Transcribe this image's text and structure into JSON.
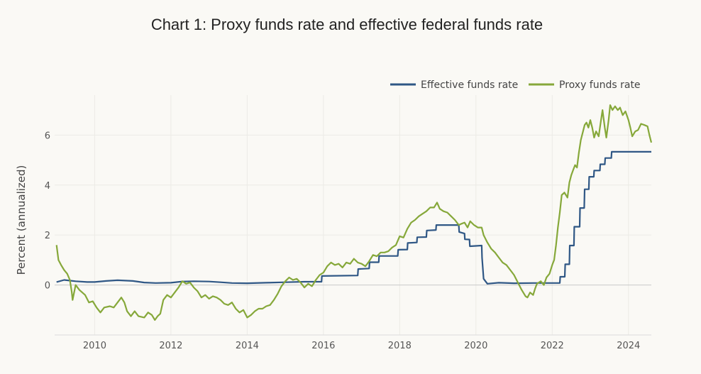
{
  "chart_data": {
    "type": "line",
    "title": "Chart 1: Proxy funds rate and effective federal funds rate",
    "xlabel": "",
    "ylabel": "Percent (annualized)",
    "xlim": [
      2008.95,
      2024.6
    ],
    "ylim": [
      -2,
      7.6
    ],
    "x_ticks": [
      2010,
      2012,
      2014,
      2016,
      2018,
      2020,
      2022,
      2024
    ],
    "y_ticks": [
      0,
      2,
      4,
      6
    ],
    "grid": true,
    "legend_position": "top-right",
    "series": [
      {
        "name": "Effective funds rate",
        "color": "#2f5785",
        "points": [
          [
            2009.0,
            0.12
          ],
          [
            2009.2,
            0.2
          ],
          [
            2009.5,
            0.15
          ],
          [
            2009.8,
            0.12
          ],
          [
            2010.0,
            0.12
          ],
          [
            2010.3,
            0.16
          ],
          [
            2010.6,
            0.19
          ],
          [
            2011.0,
            0.16
          ],
          [
            2011.3,
            0.1
          ],
          [
            2011.6,
            0.08
          ],
          [
            2012.0,
            0.09
          ],
          [
            2012.3,
            0.14
          ],
          [
            2012.6,
            0.15
          ],
          [
            2013.0,
            0.14
          ],
          [
            2013.3,
            0.11
          ],
          [
            2013.6,
            0.08
          ],
          [
            2014.0,
            0.07
          ],
          [
            2014.5,
            0.09
          ],
          [
            2015.0,
            0.11
          ],
          [
            2015.5,
            0.13
          ],
          [
            2015.95,
            0.13
          ],
          [
            2015.96,
            0.36
          ],
          [
            2016.9,
            0.38
          ],
          [
            2016.91,
            0.64
          ],
          [
            2017.2,
            0.66
          ],
          [
            2017.21,
            0.91
          ],
          [
            2017.45,
            0.91
          ],
          [
            2017.46,
            1.16
          ],
          [
            2017.95,
            1.16
          ],
          [
            2017.96,
            1.41
          ],
          [
            2018.2,
            1.42
          ],
          [
            2018.21,
            1.68
          ],
          [
            2018.45,
            1.7
          ],
          [
            2018.46,
            1.91
          ],
          [
            2018.7,
            1.92
          ],
          [
            2018.71,
            2.18
          ],
          [
            2018.95,
            2.2
          ],
          [
            2018.96,
            2.4
          ],
          [
            2019.55,
            2.4
          ],
          [
            2019.56,
            2.12
          ],
          [
            2019.7,
            2.06
          ],
          [
            2019.71,
            1.83
          ],
          [
            2019.83,
            1.82
          ],
          [
            2019.84,
            1.55
          ],
          [
            2020.15,
            1.58
          ],
          [
            2020.16,
            1.1
          ],
          [
            2020.2,
            0.25
          ],
          [
            2020.3,
            0.05
          ],
          [
            2020.6,
            0.09
          ],
          [
            2021.0,
            0.07
          ],
          [
            2021.5,
            0.08
          ],
          [
            2022.0,
            0.08
          ],
          [
            2022.2,
            0.08
          ],
          [
            2022.21,
            0.33
          ],
          [
            2022.33,
            0.33
          ],
          [
            2022.34,
            0.83
          ],
          [
            2022.45,
            0.83
          ],
          [
            2022.46,
            1.58
          ],
          [
            2022.57,
            1.58
          ],
          [
            2022.58,
            2.33
          ],
          [
            2022.72,
            2.33
          ],
          [
            2022.73,
            3.08
          ],
          [
            2022.84,
            3.08
          ],
          [
            2022.85,
            3.83
          ],
          [
            2022.96,
            3.83
          ],
          [
            2022.97,
            4.33
          ],
          [
            2023.09,
            4.33
          ],
          [
            2023.1,
            4.58
          ],
          [
            2023.25,
            4.58
          ],
          [
            2023.26,
            4.83
          ],
          [
            2023.38,
            4.83
          ],
          [
            2023.39,
            5.08
          ],
          [
            2023.55,
            5.08
          ],
          [
            2023.56,
            5.33
          ],
          [
            2024.6,
            5.33
          ]
        ]
      },
      {
        "name": "Proxy funds rate",
        "color": "#86a83a",
        "points": [
          [
            2009.0,
            1.6
          ],
          [
            2009.05,
            1.0
          ],
          [
            2009.12,
            0.8
          ],
          [
            2009.2,
            0.6
          ],
          [
            2009.28,
            0.45
          ],
          [
            2009.35,
            0.2
          ],
          [
            2009.4,
            -0.3
          ],
          [
            2009.42,
            -0.6
          ],
          [
            2009.5,
            0.0
          ],
          [
            2009.6,
            -0.2
          ],
          [
            2009.75,
            -0.4
          ],
          [
            2009.85,
            -0.7
          ],
          [
            2009.95,
            -0.65
          ],
          [
            2010.05,
            -0.9
          ],
          [
            2010.15,
            -1.1
          ],
          [
            2010.25,
            -0.9
          ],
          [
            2010.4,
            -0.85
          ],
          [
            2010.5,
            -0.9
          ],
          [
            2010.6,
            -0.7
          ],
          [
            2010.7,
            -0.5
          ],
          [
            2010.78,
            -0.7
          ],
          [
            2010.85,
            -1.05
          ],
          [
            2010.95,
            -1.25
          ],
          [
            2011.05,
            -1.05
          ],
          [
            2011.15,
            -1.25
          ],
          [
            2011.3,
            -1.3
          ],
          [
            2011.4,
            -1.1
          ],
          [
            2011.5,
            -1.2
          ],
          [
            2011.58,
            -1.4
          ],
          [
            2011.65,
            -1.25
          ],
          [
            2011.72,
            -1.15
          ],
          [
            2011.8,
            -0.6
          ],
          [
            2011.9,
            -0.4
          ],
          [
            2012.0,
            -0.5
          ],
          [
            2012.1,
            -0.3
          ],
          [
            2012.2,
            -0.1
          ],
          [
            2012.3,
            0.15
          ],
          [
            2012.4,
            0.05
          ],
          [
            2012.5,
            0.1
          ],
          [
            2012.6,
            -0.1
          ],
          [
            2012.7,
            -0.25
          ],
          [
            2012.8,
            -0.5
          ],
          [
            2012.9,
            -0.4
          ],
          [
            2013.0,
            -0.55
          ],
          [
            2013.1,
            -0.45
          ],
          [
            2013.2,
            -0.5
          ],
          [
            2013.3,
            -0.6
          ],
          [
            2013.4,
            -0.75
          ],
          [
            2013.5,
            -0.8
          ],
          [
            2013.6,
            -0.7
          ],
          [
            2013.7,
            -0.95
          ],
          [
            2013.8,
            -1.1
          ],
          [
            2013.9,
            -1.0
          ],
          [
            2014.0,
            -1.3
          ],
          [
            2014.1,
            -1.2
          ],
          [
            2014.2,
            -1.05
          ],
          [
            2014.3,
            -0.95
          ],
          [
            2014.4,
            -0.95
          ],
          [
            2014.5,
            -0.85
          ],
          [
            2014.6,
            -0.8
          ],
          [
            2014.7,
            -0.6
          ],
          [
            2014.8,
            -0.35
          ],
          [
            2014.9,
            -0.05
          ],
          [
            2015.0,
            0.15
          ],
          [
            2015.1,
            0.3
          ],
          [
            2015.2,
            0.2
          ],
          [
            2015.3,
            0.25
          ],
          [
            2015.4,
            0.1
          ],
          [
            2015.5,
            -0.1
          ],
          [
            2015.6,
            0.05
          ],
          [
            2015.7,
            -0.05
          ],
          [
            2015.8,
            0.2
          ],
          [
            2015.9,
            0.4
          ],
          [
            2016.0,
            0.5
          ],
          [
            2016.1,
            0.75
          ],
          [
            2016.2,
            0.9
          ],
          [
            2016.3,
            0.8
          ],
          [
            2016.4,
            0.85
          ],
          [
            2016.5,
            0.7
          ],
          [
            2016.6,
            0.9
          ],
          [
            2016.7,
            0.85
          ],
          [
            2016.8,
            1.05
          ],
          [
            2016.9,
            0.9
          ],
          [
            2017.0,
            0.85
          ],
          [
            2017.1,
            0.75
          ],
          [
            2017.2,
            0.95
          ],
          [
            2017.3,
            1.2
          ],
          [
            2017.4,
            1.15
          ],
          [
            2017.5,
            1.3
          ],
          [
            2017.6,
            1.3
          ],
          [
            2017.7,
            1.35
          ],
          [
            2017.8,
            1.5
          ],
          [
            2017.9,
            1.6
          ],
          [
            2018.0,
            1.95
          ],
          [
            2018.1,
            1.9
          ],
          [
            2018.2,
            2.25
          ],
          [
            2018.3,
            2.5
          ],
          [
            2018.4,
            2.6
          ],
          [
            2018.5,
            2.75
          ],
          [
            2018.6,
            2.85
          ],
          [
            2018.7,
            2.95
          ],
          [
            2018.8,
            3.1
          ],
          [
            2018.9,
            3.1
          ],
          [
            2018.98,
            3.3
          ],
          [
            2019.05,
            3.05
          ],
          [
            2019.15,
            2.95
          ],
          [
            2019.25,
            2.9
          ],
          [
            2019.35,
            2.75
          ],
          [
            2019.45,
            2.6
          ],
          [
            2019.55,
            2.4
          ],
          [
            2019.62,
            2.45
          ],
          [
            2019.7,
            2.5
          ],
          [
            2019.78,
            2.3
          ],
          [
            2019.85,
            2.55
          ],
          [
            2019.95,
            2.4
          ],
          [
            2020.05,
            2.3
          ],
          [
            2020.15,
            2.3
          ],
          [
            2020.2,
            2.0
          ],
          [
            2020.3,
            1.7
          ],
          [
            2020.4,
            1.45
          ],
          [
            2020.5,
            1.3
          ],
          [
            2020.6,
            1.1
          ],
          [
            2020.7,
            0.9
          ],
          [
            2020.8,
            0.8
          ],
          [
            2020.9,
            0.6
          ],
          [
            2021.0,
            0.4
          ],
          [
            2021.1,
            0.1
          ],
          [
            2021.2,
            -0.2
          ],
          [
            2021.3,
            -0.45
          ],
          [
            2021.35,
            -0.5
          ],
          [
            2021.42,
            -0.3
          ],
          [
            2021.5,
            -0.4
          ],
          [
            2021.55,
            -0.15
          ],
          [
            2021.6,
            0.05
          ],
          [
            2021.7,
            0.15
          ],
          [
            2021.78,
            0.0
          ],
          [
            2021.85,
            0.3
          ],
          [
            2021.93,
            0.45
          ],
          [
            2022.0,
            0.8
          ],
          [
            2022.05,
            1.0
          ],
          [
            2022.1,
            1.6
          ],
          [
            2022.15,
            2.3
          ],
          [
            2022.2,
            2.9
          ],
          [
            2022.25,
            3.6
          ],
          [
            2022.32,
            3.7
          ],
          [
            2022.4,
            3.5
          ],
          [
            2022.45,
            4.1
          ],
          [
            2022.5,
            4.4
          ],
          [
            2022.55,
            4.6
          ],
          [
            2022.6,
            4.8
          ],
          [
            2022.65,
            4.7
          ],
          [
            2022.7,
            5.3
          ],
          [
            2022.75,
            5.8
          ],
          [
            2022.8,
            6.1
          ],
          [
            2022.85,
            6.4
          ],
          [
            2022.9,
            6.5
          ],
          [
            2022.95,
            6.3
          ],
          [
            2023.0,
            6.6
          ],
          [
            2023.05,
            6.3
          ],
          [
            2023.1,
            5.9
          ],
          [
            2023.15,
            6.15
          ],
          [
            2023.22,
            5.95
          ],
          [
            2023.28,
            6.6
          ],
          [
            2023.32,
            7.0
          ],
          [
            2023.38,
            6.3
          ],
          [
            2023.42,
            5.9
          ],
          [
            2023.48,
            6.6
          ],
          [
            2023.52,
            7.2
          ],
          [
            2023.58,
            7.0
          ],
          [
            2023.65,
            7.15
          ],
          [
            2023.72,
            7.0
          ],
          [
            2023.78,
            7.1
          ],
          [
            2023.85,
            6.8
          ],
          [
            2023.92,
            6.95
          ],
          [
            2024.0,
            6.6
          ],
          [
            2024.05,
            6.3
          ],
          [
            2024.1,
            5.95
          ],
          [
            2024.18,
            6.15
          ],
          [
            2024.25,
            6.2
          ],
          [
            2024.33,
            6.45
          ],
          [
            2024.42,
            6.4
          ],
          [
            2024.5,
            6.35
          ],
          [
            2024.55,
            6.0
          ],
          [
            2024.6,
            5.7
          ]
        ]
      }
    ]
  }
}
